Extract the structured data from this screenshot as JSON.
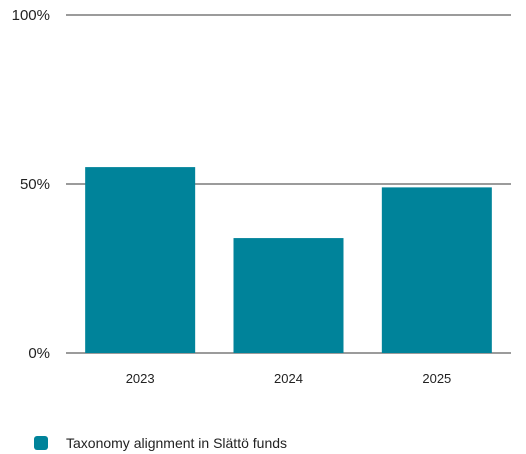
{
  "chart_data": {
    "type": "bar",
    "categories": [
      "2023",
      "2024",
      "2025"
    ],
    "series": [
      {
        "name": "Taxonomy alignment in Slättö funds",
        "values": [
          55,
          34,
          49
        ]
      }
    ],
    "ylim": [
      0,
      100
    ],
    "yticks": [
      "0%",
      "50%",
      "100%"
    ],
    "grid": true,
    "legend_position": "bottom-left",
    "color": "#00839a"
  }
}
